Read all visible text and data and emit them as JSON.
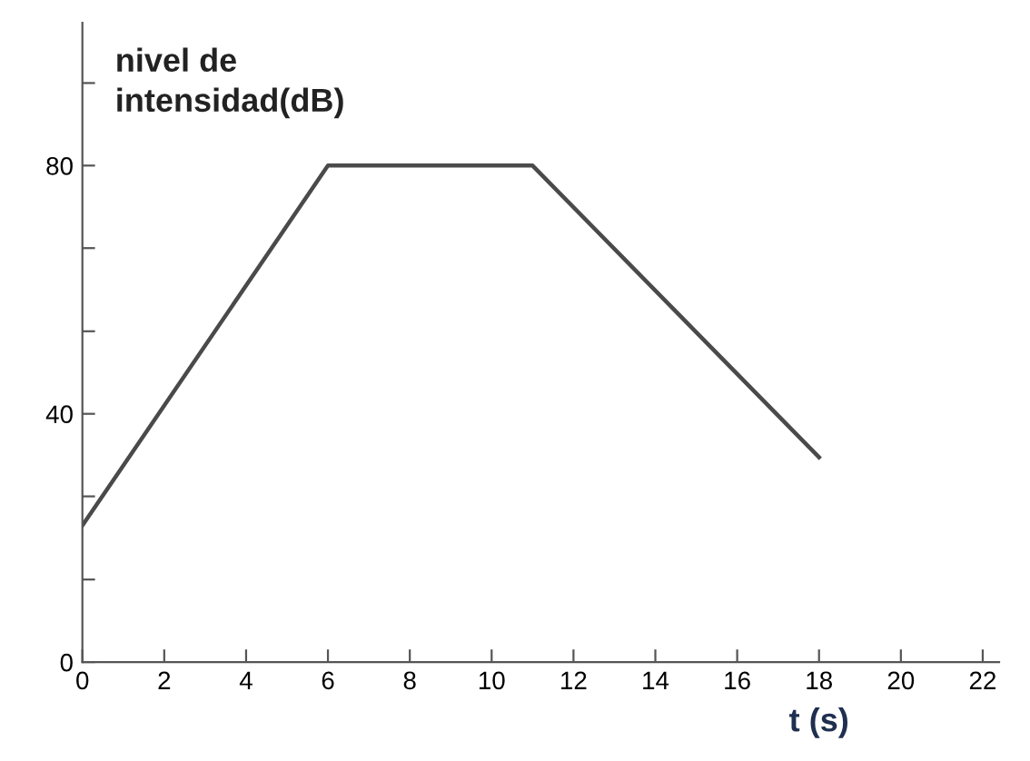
{
  "chart_data": {
    "type": "line",
    "x": [
      0,
      6,
      11,
      18
    ],
    "series": [
      {
        "color": "#4a4a4a",
        "values": [
          22,
          80,
          80,
          33
        ]
      }
    ],
    "xlabel": "t (s)",
    "ylabel": "nivel de\nintensidad(dB)",
    "xlim": [
      0,
      22.4
    ],
    "ylim": [
      0,
      103
    ],
    "xticks": [
      0,
      2,
      4,
      6,
      8,
      10,
      12,
      14,
      16,
      18,
      20,
      22
    ],
    "yticks": [
      0,
      {
        "value": 13.3,
        "label": null
      },
      {
        "value": 26.7,
        "label": null
      },
      40,
      {
        "value": 53.3,
        "label": null
      },
      {
        "value": 66.7,
        "label": null
      },
      80,
      {
        "value": 93.3,
        "label": null
      }
    ],
    "grid": false,
    "legend": false,
    "marker": "none",
    "line_style": "solid"
  }
}
